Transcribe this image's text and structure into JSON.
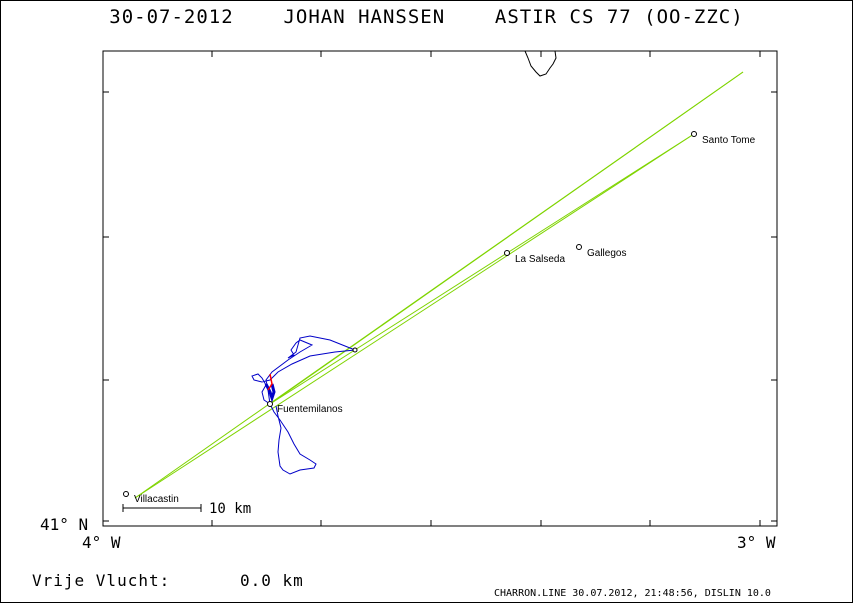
{
  "title": "30-07-2012    JOHAN HANSSEN    ASTIR CS 77 (OO-ZZC)",
  "axes": {
    "lat_label": "41° N",
    "lon_left_label": "4° W",
    "lon_right_label": "3° W"
  },
  "scale_bar": {
    "label": "10 km"
  },
  "distance": {
    "label": "Vrije Vlucht:",
    "value": "0.0 km"
  },
  "footer": "CHARRON.LINE 30.07.2012, 21:48:56, DISLIN 10.0",
  "colors": {
    "task_line": "#7fd400",
    "track": "#0000c8",
    "track_highlight": "#ff0000",
    "frame": "#000000"
  },
  "places": [
    {
      "name": "Santo Tome"
    },
    {
      "name": "La Salseda"
    },
    {
      "name": "Gallegos"
    },
    {
      "name": "Fuentemilanos"
    },
    {
      "name": "Villacastin"
    }
  ]
}
